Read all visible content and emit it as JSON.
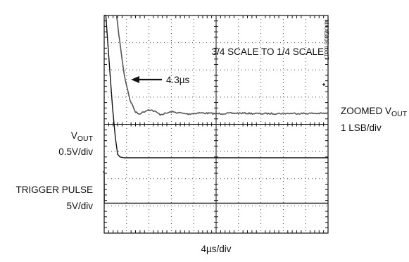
{
  "chart_data": {
    "type": "line",
    "title": "3/4 SCALE TO 1/4 SCALE",
    "annotation": "4.3µs",
    "figure_id": "MAX5800 toc17",
    "xlabel": "4µs/div",
    "x_unit": "µs",
    "xlim": [
      0,
      40
    ],
    "y_unit": "div",
    "ylim": [
      -4,
      4
    ],
    "grid": true,
    "traces": [
      {
        "label_main": "ZOOMED V",
        "label_sub": "OUT",
        "scale": "1 LSB/div",
        "color": "#555555",
        "points": [
          [
            2.2,
            4.0
          ],
          [
            2.8,
            3.0
          ],
          [
            3.6,
            1.8
          ],
          [
            4.6,
            0.9
          ],
          [
            5.6,
            0.45
          ],
          [
            6.2,
            0.38
          ],
          [
            7,
            0.45
          ],
          [
            8,
            0.55
          ],
          [
            9,
            0.48
          ],
          [
            10,
            0.36
          ],
          [
            11,
            0.4
          ],
          [
            12,
            0.46
          ],
          [
            13,
            0.43
          ],
          [
            15,
            0.38
          ],
          [
            17,
            0.42
          ],
          [
            20,
            0.39
          ],
          [
            24,
            0.41
          ],
          [
            28,
            0.39
          ],
          [
            32,
            0.4
          ],
          [
            36,
            0.4
          ],
          [
            40,
            0.4
          ]
        ]
      },
      {
        "label_main": "V",
        "label_sub": "OUT",
        "scale": "0.5V/div",
        "color": "#111111",
        "points": [
          [
            0,
            4.0
          ],
          [
            0.3,
            4.0
          ],
          [
            0.5,
            3.4
          ],
          [
            1.0,
            2.0
          ],
          [
            1.5,
            0.6
          ],
          [
            2.0,
            -0.5
          ],
          [
            2.4,
            -1.1
          ],
          [
            2.8,
            -1.2
          ],
          [
            3.5,
            -1.23
          ],
          [
            40,
            -1.23
          ]
        ]
      },
      {
        "label_main": "TRIGGER PULSE",
        "label_sub": "",
        "scale": "5V/div",
        "color": "#222222",
        "points": [
          [
            -0.25,
            -1.75
          ],
          [
            0.0,
            -1.75
          ],
          [
            0.02,
            -2.9
          ],
          [
            40,
            -2.9
          ]
        ]
      }
    ]
  }
}
